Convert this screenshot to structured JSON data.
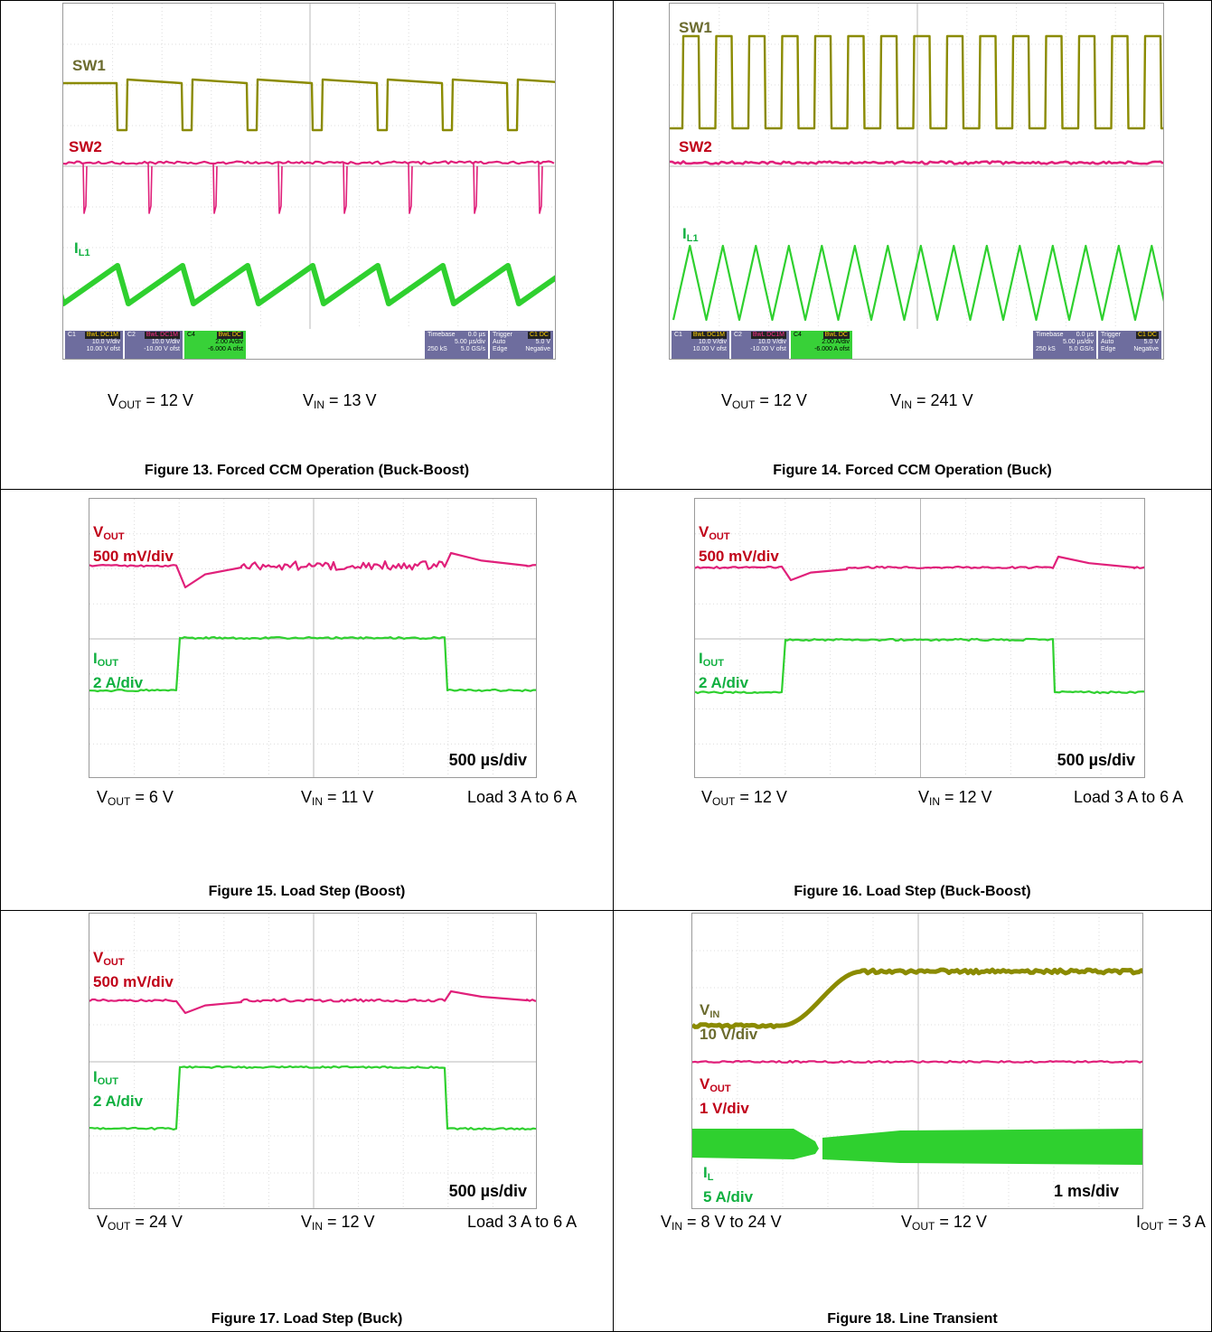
{
  "colors": {
    "ch1": "#8b8b00",
    "ch1_label": "#6b6b2e",
    "ch2": "#e0207a",
    "ch2_label": "#c00018",
    "ch4": "#2fd02f",
    "ch4_label": "#10b040"
  },
  "figures": [
    {
      "id": "fig13",
      "caption": "Figure 13. Forced CCM Operation (Buck-Boost)",
      "labels": [
        {
          "main": "SW1",
          "sub": "",
          "div": "",
          "color": "ch1"
        },
        {
          "main": "SW2",
          "sub": "",
          "div": "",
          "color": "ch2"
        },
        {
          "main": "I",
          "sub": "L1",
          "div": "",
          "color": "ch4"
        }
      ],
      "conditions": [
        {
          "main": "V",
          "sub": "OUT",
          "value": " = 12 V"
        },
        {
          "main": "V",
          "sub": "IN",
          "value": " = 13 V"
        }
      ],
      "info": {
        "c1": {
          "ch": "C1",
          "mode": "BwL DC1M",
          "vdiv": "10.0 V/div",
          "ofst": "10.00 V ofst"
        },
        "c2": {
          "ch": "C2",
          "mode": "BwL DC1M",
          "vdiv": "10.0 V/div",
          "ofst": "-10.00 V ofst"
        },
        "c4": {
          "ch": "C4",
          "mode": "BwL DC",
          "vdiv": "2.00 A/div",
          "ofst": "-6.000 A ofst"
        },
        "timebase": {
          "title": "Timebase",
          "delay": "0.0 µs",
          "tdiv": "5.00 µs/div",
          "samples": "250 kS",
          "rate": "5.0 GS/s"
        },
        "trigger": {
          "title": "Trigger",
          "src": "C1 DC",
          "mode": "Auto",
          "level": "5.0 V",
          "type": "Edge",
          "slope": "Negative"
        }
      }
    },
    {
      "id": "fig14",
      "caption": "Figure 14. Forced CCM Operation (Buck)",
      "labels": [
        {
          "main": "SW1",
          "sub": "",
          "div": "",
          "color": "ch1"
        },
        {
          "main": "SW2",
          "sub": "",
          "div": "",
          "color": "ch2"
        },
        {
          "main": "I",
          "sub": "L1",
          "div": "",
          "color": "ch4"
        }
      ],
      "conditions": [
        {
          "main": "V",
          "sub": "OUT",
          "value": " = 12 V"
        },
        {
          "main": "V",
          "sub": "IN",
          "value": " = 241 V"
        }
      ],
      "info": {
        "c1": {
          "ch": "C1",
          "mode": "BwL DC1M",
          "vdiv": "10.0 V/div",
          "ofst": "10.00 V ofst"
        },
        "c2": {
          "ch": "C2",
          "mode": "BwL DC1M",
          "vdiv": "10.0 V/div",
          "ofst": "-10.00 V ofst"
        },
        "c4": {
          "ch": "C4",
          "mode": "BwL DC",
          "vdiv": "2.00 A/div",
          "ofst": "-6.000 A ofst"
        },
        "timebase": {
          "title": "Timebase",
          "delay": "0.0 µs",
          "tdiv": "5.00 µs/div",
          "samples": "250 kS",
          "rate": "5.0 GS/s"
        },
        "trigger": {
          "title": "Trigger",
          "src": "C1 DC",
          "mode": "Auto",
          "level": "5.0 V",
          "type": "Edge",
          "slope": "Negative"
        }
      }
    },
    {
      "id": "fig15",
      "caption": "Figure 15. Load Step (Boost)",
      "time_div": "500 µs/div",
      "labels": [
        {
          "main": "V",
          "sub": "OUT",
          "div": "500 mV/div",
          "color": "ch2"
        },
        {
          "main": "I",
          "sub": "OUT",
          "div": "2 A/div",
          "color": "ch4"
        }
      ],
      "conditions": [
        {
          "main": "V",
          "sub": "OUT",
          "value": " = 6 V"
        },
        {
          "main": "V",
          "sub": "IN",
          "value": " = 11 V"
        },
        {
          "main": "Load 3 A to 6 A",
          "sub": "",
          "value": ""
        }
      ]
    },
    {
      "id": "fig16",
      "caption": "Figure 16. Load Step (Buck-Boost)",
      "time_div": "500 µs/div",
      "labels": [
        {
          "main": "V",
          "sub": "OUT",
          "div": "500 mV/div",
          "color": "ch2"
        },
        {
          "main": "I",
          "sub": "OUT",
          "div": "2 A/div",
          "color": "ch4"
        }
      ],
      "conditions": [
        {
          "main": "V",
          "sub": "OUT",
          "value": " = 12 V"
        },
        {
          "main": "V",
          "sub": "IN",
          "value": " = 12 V"
        },
        {
          "main": "Load 3 A to 6 A",
          "sub": "",
          "value": ""
        }
      ]
    },
    {
      "id": "fig17",
      "caption": "Figure 17. Load Step (Buck)",
      "time_div": "500 µs/div",
      "labels": [
        {
          "main": "V",
          "sub": "OUT",
          "div": "500 mV/div",
          "color": "ch2"
        },
        {
          "main": "I",
          "sub": "OUT",
          "div": "2 A/div",
          "color": "ch4"
        }
      ],
      "conditions": [
        {
          "main": "V",
          "sub": "OUT",
          "value": " = 24 V"
        },
        {
          "main": "V",
          "sub": "IN",
          "value": " = 12 V"
        },
        {
          "main": "Load 3 A to 6 A",
          "sub": "",
          "value": ""
        }
      ]
    },
    {
      "id": "fig18",
      "caption": "Figure 18. Line Transient",
      "time_div": "1 ms/div",
      "labels": [
        {
          "main": "V",
          "sub": "IN",
          "div": "10 V/div",
          "color": "ch1"
        },
        {
          "main": "V",
          "sub": "OUT",
          "div": "1 V/div",
          "color": "ch2"
        },
        {
          "main": "I",
          "sub": "L",
          "div": "5 A/div",
          "color": "ch4"
        }
      ],
      "conditions": [
        {
          "main": "V",
          "sub": "IN",
          "value": " = 8 V to 24 V"
        },
        {
          "main": "V",
          "sub": "OUT",
          "value": " = 12 V"
        },
        {
          "main": "I",
          "sub": "OUT",
          "value": " = 3 A"
        }
      ]
    }
  ]
}
